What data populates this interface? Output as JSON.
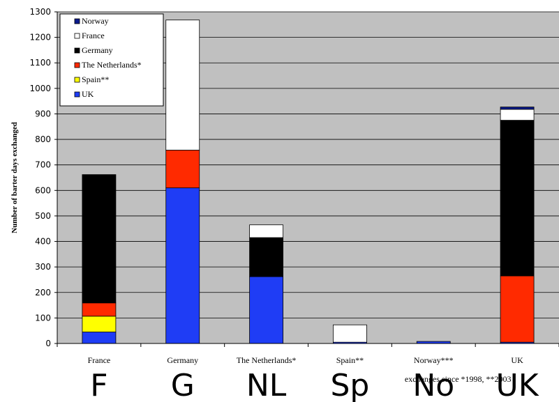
{
  "chart_data": {
    "type": "bar",
    "stacked": true,
    "categories": [
      "France",
      "Germany",
      "The Netherlands*",
      "Spain**",
      "Norway***",
      "UK"
    ],
    "category_codes": [
      "F",
      "G",
      "NL",
      "Sp",
      "No",
      "UK"
    ],
    "series": [
      {
        "name": "UK",
        "color": "#1f3df5",
        "values": [
          45,
          610,
          262,
          5,
          8,
          5
        ]
      },
      {
        "name": "Spain**",
        "color": "#ffff00",
        "values": [
          62,
          0,
          0,
          0,
          0,
          0
        ]
      },
      {
        "name": "The Netherlands*",
        "color": "#ff2a00",
        "values": [
          52,
          148,
          0,
          0,
          0,
          260
        ]
      },
      {
        "name": "Germany",
        "color": "#000000",
        "values": [
          503,
          0,
          153,
          0,
          0,
          610
        ]
      },
      {
        "name": "France",
        "color": "#ffffff",
        "values": [
          0,
          510,
          50,
          68,
          0,
          43
        ]
      },
      {
        "name": "Norway",
        "color": "#0a1a8c",
        "values": [
          0,
          0,
          0,
          0,
          0,
          9
        ]
      }
    ],
    "legend_order": [
      "Norway",
      "France",
      "Germany",
      "The Netherlands*",
      "Spain**",
      "UK"
    ],
    "ylabel": "Number of barter days exchanged",
    "xlabel": "",
    "ylim": [
      0,
      1300
    ],
    "yticks": [
      0,
      100,
      200,
      300,
      400,
      500,
      600,
      700,
      800,
      900,
      1000,
      1100,
      1200,
      1300
    ],
    "grid": true,
    "legend_position": "top-left",
    "plot_background": "#c0c0c0",
    "footnote": "exchanges since *1998, **2003"
  }
}
